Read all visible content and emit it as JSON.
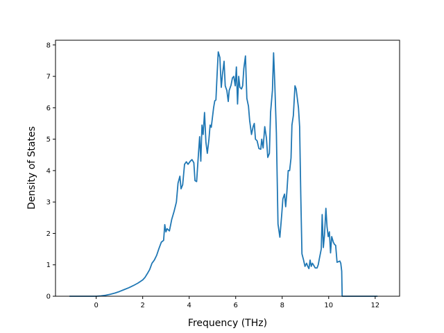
{
  "chart_data": {
    "type": "line",
    "title": "",
    "xlabel": "Frequency (THz)",
    "ylabel": "Density of States",
    "xlim": [
      -1.75,
      13.05
    ],
    "ylim": [
      0,
      8.15
    ],
    "xticks": [
      0,
      2,
      4,
      6,
      8,
      10,
      12
    ],
    "yticks": [
      0,
      1,
      2,
      3,
      4,
      5,
      6,
      7,
      8
    ],
    "grid": false,
    "legend": "none",
    "series": [
      {
        "color": "#1f77b4",
        "points": [
          [
            -1.15,
            0
          ],
          [
            -0.5,
            0
          ],
          [
            0.0,
            0.0
          ],
          [
            0.2,
            0.01
          ],
          [
            0.4,
            0.03
          ],
          [
            0.6,
            0.06
          ],
          [
            0.8,
            0.1
          ],
          [
            1.0,
            0.15
          ],
          [
            1.2,
            0.21
          ],
          [
            1.4,
            0.27
          ],
          [
            1.6,
            0.34
          ],
          [
            1.8,
            0.42
          ],
          [
            2.0,
            0.52
          ],
          [
            2.1,
            0.6
          ],
          [
            2.2,
            0.72
          ],
          [
            2.3,
            0.85
          ],
          [
            2.4,
            1.05
          ],
          [
            2.5,
            1.15
          ],
          [
            2.6,
            1.3
          ],
          [
            2.7,
            1.52
          ],
          [
            2.8,
            1.72
          ],
          [
            2.9,
            1.78
          ],
          [
            2.95,
            2.28
          ],
          [
            3.0,
            2.05
          ],
          [
            3.05,
            2.15
          ],
          [
            3.15,
            2.08
          ],
          [
            3.25,
            2.45
          ],
          [
            3.35,
            2.7
          ],
          [
            3.45,
            3.0
          ],
          [
            3.52,
            3.6
          ],
          [
            3.6,
            3.82
          ],
          [
            3.65,
            3.42
          ],
          [
            3.72,
            3.55
          ],
          [
            3.8,
            4.2
          ],
          [
            3.88,
            4.28
          ],
          [
            3.95,
            4.2
          ],
          [
            4.05,
            4.3
          ],
          [
            4.12,
            4.35
          ],
          [
            4.2,
            4.25
          ],
          [
            4.25,
            3.68
          ],
          [
            4.32,
            3.65
          ],
          [
            4.4,
            4.55
          ],
          [
            4.45,
            5.08
          ],
          [
            4.5,
            4.3
          ],
          [
            4.55,
            5.45
          ],
          [
            4.6,
            5.15
          ],
          [
            4.66,
            5.85
          ],
          [
            4.72,
            4.9
          ],
          [
            4.78,
            4.55
          ],
          [
            4.85,
            5.0
          ],
          [
            4.9,
            5.45
          ],
          [
            4.95,
            5.38
          ],
          [
            5.05,
            6.0
          ],
          [
            5.1,
            6.22
          ],
          [
            5.15,
            6.25
          ],
          [
            5.2,
            7.05
          ],
          [
            5.25,
            7.78
          ],
          [
            5.32,
            7.6
          ],
          [
            5.38,
            6.65
          ],
          [
            5.43,
            7.05
          ],
          [
            5.5,
            7.48
          ],
          [
            5.55,
            6.7
          ],
          [
            5.62,
            6.55
          ],
          [
            5.68,
            6.2
          ],
          [
            5.72,
            6.55
          ],
          [
            5.8,
            6.72
          ],
          [
            5.86,
            6.95
          ],
          [
            5.92,
            7.0
          ],
          [
            5.98,
            6.7
          ],
          [
            6.03,
            7.3
          ],
          [
            6.08,
            6.12
          ],
          [
            6.13,
            7.0
          ],
          [
            6.18,
            6.65
          ],
          [
            6.25,
            6.6
          ],
          [
            6.3,
            6.7
          ],
          [
            6.35,
            7.25
          ],
          [
            6.42,
            7.65
          ],
          [
            6.48,
            6.3
          ],
          [
            6.55,
            6.05
          ],
          [
            6.6,
            5.6
          ],
          [
            6.68,
            5.15
          ],
          [
            6.75,
            5.4
          ],
          [
            6.8,
            5.5
          ],
          [
            6.85,
            5.0
          ],
          [
            6.92,
            4.95
          ],
          [
            7.0,
            4.7
          ],
          [
            7.08,
            4.68
          ],
          [
            7.12,
            5.0
          ],
          [
            7.18,
            4.72
          ],
          [
            7.25,
            5.4
          ],
          [
            7.32,
            5.05
          ],
          [
            7.38,
            4.42
          ],
          [
            7.45,
            4.55
          ],
          [
            7.5,
            5.85
          ],
          [
            7.58,
            6.55
          ],
          [
            7.63,
            7.75
          ],
          [
            7.68,
            6.8
          ],
          [
            7.75,
            5.2
          ],
          [
            7.82,
            2.3
          ],
          [
            7.9,
            1.88
          ],
          [
            7.98,
            2.6
          ],
          [
            8.03,
            3.1
          ],
          [
            8.1,
            3.25
          ],
          [
            8.15,
            2.85
          ],
          [
            8.2,
            3.3
          ],
          [
            8.26,
            4.0
          ],
          [
            8.32,
            4.0
          ],
          [
            8.38,
            4.4
          ],
          [
            8.42,
            5.45
          ],
          [
            8.48,
            5.75
          ],
          [
            8.55,
            6.7
          ],
          [
            8.6,
            6.6
          ],
          [
            8.7,
            6.0
          ],
          [
            8.75,
            5.4
          ],
          [
            8.8,
            3.2
          ],
          [
            8.85,
            1.35
          ],
          [
            8.92,
            1.15
          ],
          [
            8.98,
            0.95
          ],
          [
            9.05,
            1.05
          ],
          [
            9.1,
            0.95
          ],
          [
            9.15,
            0.88
          ],
          [
            9.2,
            1.15
          ],
          [
            9.25,
            0.95
          ],
          [
            9.3,
            1.05
          ],
          [
            9.36,
            0.98
          ],
          [
            9.42,
            0.9
          ],
          [
            9.5,
            0.9
          ],
          [
            9.55,
            1.0
          ],
          [
            9.6,
            1.2
          ],
          [
            9.68,
            1.5
          ],
          [
            9.72,
            2.6
          ],
          [
            9.77,
            1.55
          ],
          [
            9.82,
            1.95
          ],
          [
            9.88,
            2.8
          ],
          [
            9.93,
            2.2
          ],
          [
            9.98,
            1.9
          ],
          [
            10.03,
            2.05
          ],
          [
            10.08,
            1.38
          ],
          [
            10.13,
            1.9
          ],
          [
            10.2,
            1.72
          ],
          [
            10.25,
            1.65
          ],
          [
            10.3,
            1.62
          ],
          [
            10.36,
            1.08
          ],
          [
            10.42,
            1.1
          ],
          [
            10.48,
            1.12
          ],
          [
            10.52,
            1.05
          ],
          [
            10.56,
            0.8
          ],
          [
            10.58,
            0.0
          ],
          [
            10.7,
            0
          ],
          [
            11.5,
            0
          ],
          [
            12.1,
            0
          ]
        ]
      }
    ]
  }
}
